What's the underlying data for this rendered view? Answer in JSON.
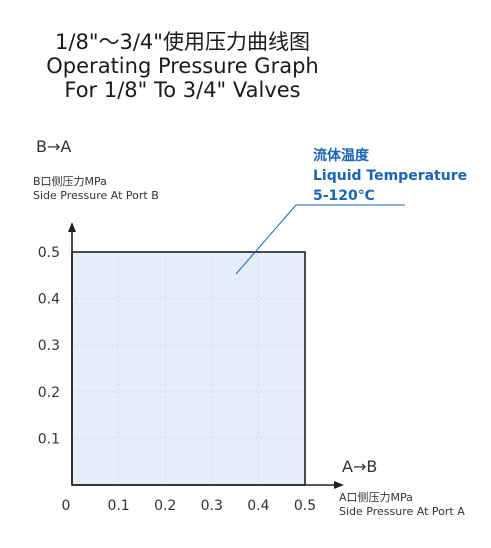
{
  "titles": {
    "line1": "1/8\"～3/4\"使用压力曲线图",
    "line2": "Operating Pressure Graph",
    "line3": "For 1/8\" To 3/4\" Valves"
  },
  "colors": {
    "fill": "#dbe8f7",
    "border": "#222222",
    "annotation": "#1a64b4",
    "grid": "#9aa3ad"
  },
  "chart_data": {
    "type": "area",
    "x": [
      0,
      0.5
    ],
    "y": [
      0.5,
      0.5
    ],
    "xlim": [
      0,
      0.5
    ],
    "ylim": [
      0,
      0.5
    ],
    "x_ticks": [
      "0",
      "0.1",
      "0.2",
      "0.3",
      "0.4",
      "0.5"
    ],
    "y_ticks": [
      "0.1",
      "0.2",
      "0.3",
      "0.4",
      "0.5"
    ],
    "grid": true,
    "y_axis_direction": "B→A",
    "y_axis_label_cn": "B口侧压力MPa",
    "y_axis_label_en": "Side Pressure At Port B",
    "x_axis_direction": "A→B",
    "x_axis_label_cn": "A口侧压力MPa",
    "x_axis_label_en": "Side Pressure At Port A",
    "annotation": {
      "line1": "流体温度",
      "line2": "Liquid Temperature",
      "line3": "5-120℃"
    }
  }
}
